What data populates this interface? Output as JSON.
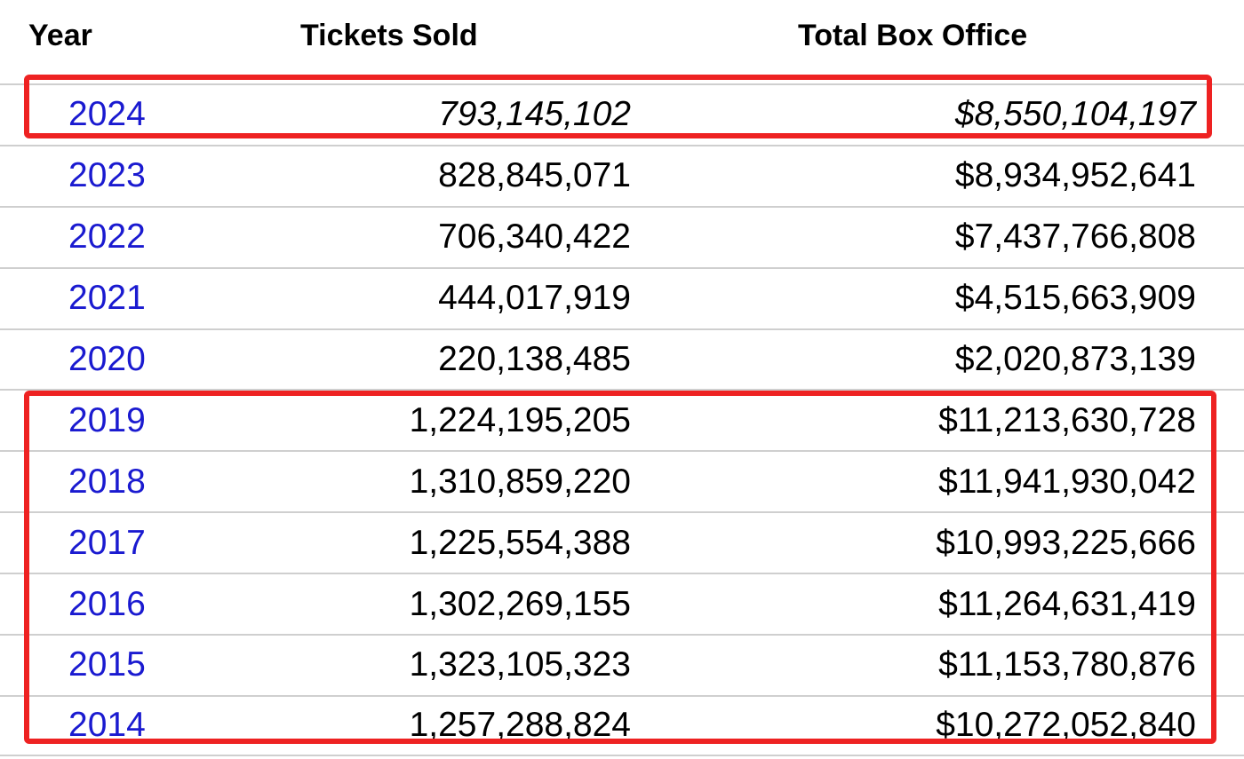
{
  "table": {
    "headers": {
      "year": "Year",
      "tickets": "Tickets Sold",
      "box_office": "Total Box Office"
    },
    "rows": [
      {
        "year": "2024",
        "tickets": "793,145,102",
        "box_office": "$8,550,104,197",
        "italic": true
      },
      {
        "year": "2023",
        "tickets": "828,845,071",
        "box_office": "$8,934,952,641"
      },
      {
        "year": "2022",
        "tickets": "706,340,422",
        "box_office": "$7,437,766,808"
      },
      {
        "year": "2021",
        "tickets": "444,017,919",
        "box_office": "$4,515,663,909"
      },
      {
        "year": "2020",
        "tickets": "220,138,485",
        "box_office": "$2,020,873,139"
      },
      {
        "year": "2019",
        "tickets": "1,224,195,205",
        "box_office": "$11,213,630,728"
      },
      {
        "year": "2018",
        "tickets": "1,310,859,220",
        "box_office": "$11,941,930,042"
      },
      {
        "year": "2017",
        "tickets": "1,225,554,388",
        "box_office": "$10,993,225,666"
      },
      {
        "year": "2016",
        "tickets": "1,302,269,155",
        "box_office": "$11,264,631,419"
      },
      {
        "year": "2015",
        "tickets": "1,323,105,323",
        "box_office": "$11,153,780,876"
      },
      {
        "year": "2014",
        "tickets": "1,257,288,824",
        "box_office": "$10,272,052,840"
      }
    ]
  },
  "colors": {
    "link": "#1a1ad0",
    "highlight": "#ee2222",
    "row_border": "#cfcfcf"
  }
}
